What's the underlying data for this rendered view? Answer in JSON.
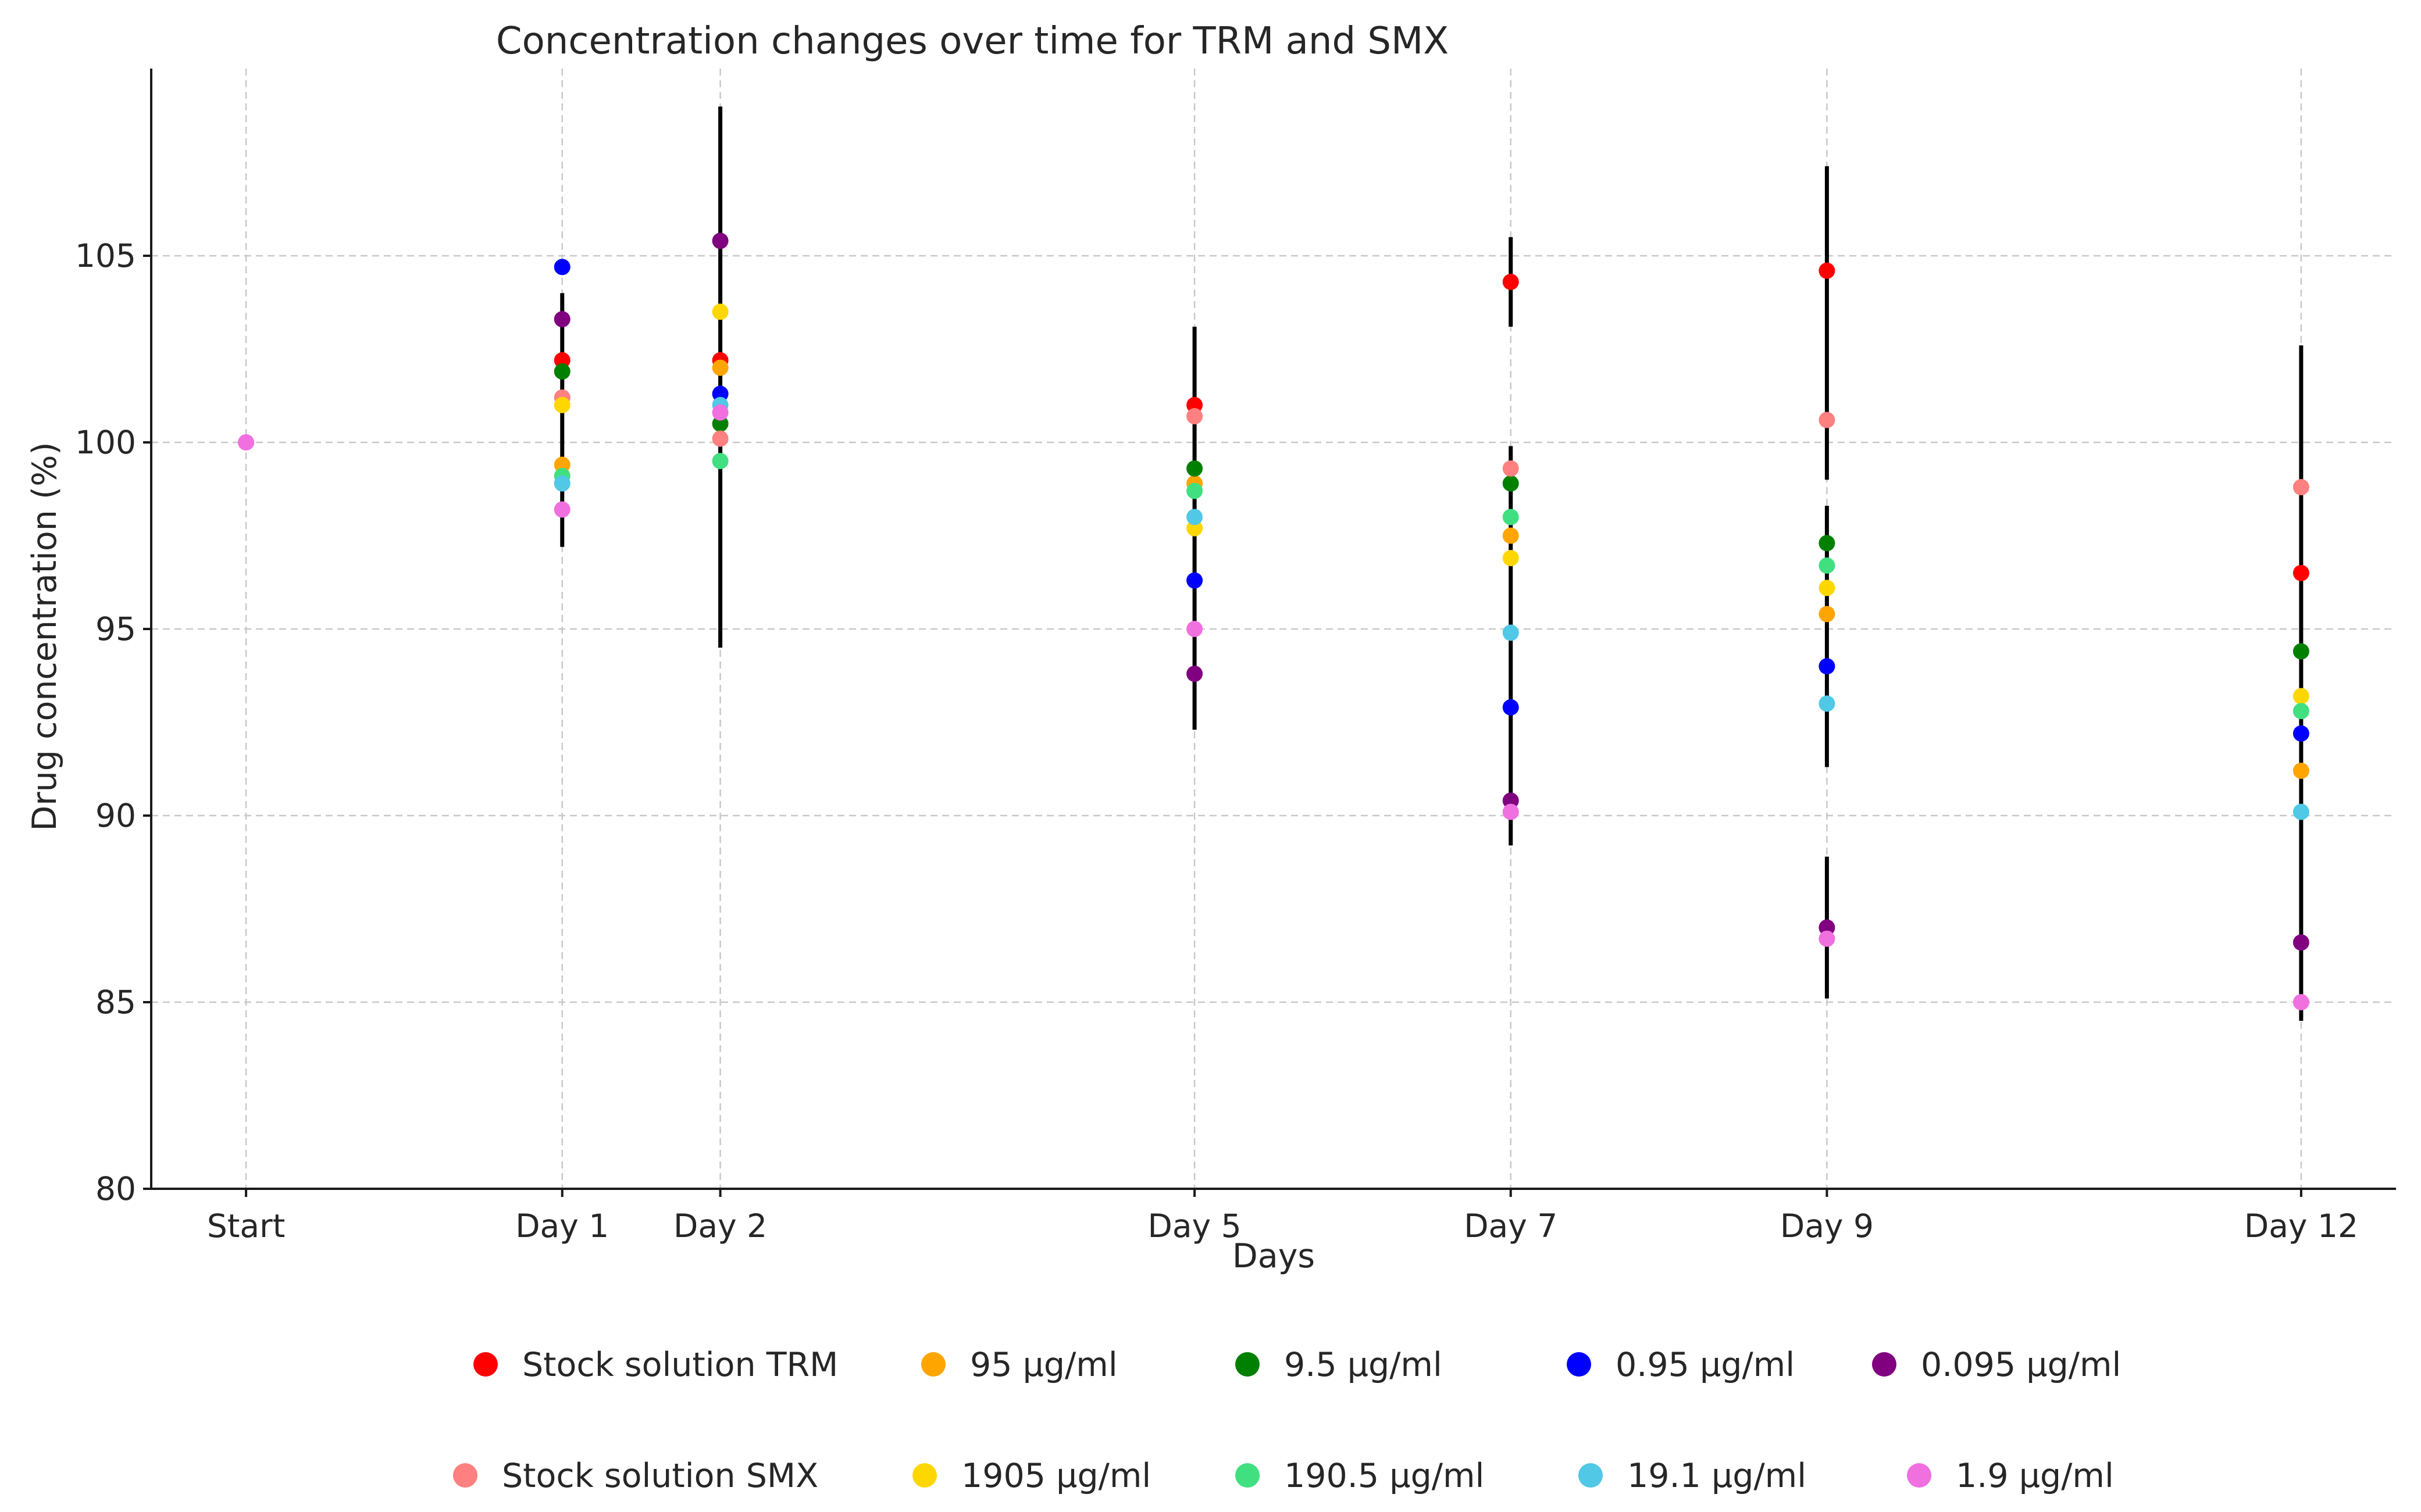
{
  "chart_data": {
    "type": "scatter",
    "title": "Concentration changes over time for TRM and SMX",
    "xlabel": "Days",
    "ylabel": "Drug concentration (%)",
    "categories": [
      "Start",
      "Day 1",
      "Day 2",
      "Day 5",
      "Day 7",
      "Day 9",
      "Day 12"
    ],
    "x": [
      -1,
      1,
      2,
      5,
      7,
      9,
      12
    ],
    "xlim": [
      -1.6,
      12.6
    ],
    "ylim": [
      80,
      110
    ],
    "yticks": [
      80,
      85,
      90,
      95,
      100,
      105
    ],
    "grid": true,
    "legend_position": "bottom",
    "error_bars": [
      {
        "x": 1,
        "low": 97.2,
        "high": 104.0
      },
      {
        "x": 2,
        "low": 94.5,
        "high": 109.0
      },
      {
        "x": 5,
        "low": 92.3,
        "high": 103.1
      },
      {
        "x": 7,
        "low": 89.2,
        "high": 99.9
      },
      {
        "x": 7,
        "low": 103.1,
        "high": 105.5
      },
      {
        "x": 9,
        "low": 91.3,
        "high": 98.3
      },
      {
        "x": 9,
        "low": 99.0,
        "high": 107.4
      },
      {
        "x": 9,
        "low": 85.1,
        "high": 88.9
      },
      {
        "x": 12,
        "low": 84.5,
        "high": 102.6
      }
    ],
    "series": [
      {
        "name": "Stock solution TRM",
        "color": "#ff0000",
        "values": [
          null,
          102.2,
          102.2,
          101.0,
          104.3,
          104.6,
          96.5
        ]
      },
      {
        "name": "95 µg/ml",
        "color": "#ffa500",
        "values": [
          null,
          99.4,
          102.0,
          98.9,
          97.5,
          95.4,
          91.2
        ]
      },
      {
        "name": "9.5 µg/ml",
        "color": "#008000",
        "values": [
          null,
          101.9,
          100.5,
          99.3,
          98.9,
          97.3,
          94.4
        ]
      },
      {
        "name": "0.95 µg/ml",
        "color": "#0000ff",
        "values": [
          null,
          104.7,
          101.3,
          96.3,
          92.9,
          94.0,
          92.2
        ]
      },
      {
        "name": "0.095 µg/ml",
        "color": "#800080",
        "values": [
          null,
          103.3,
          105.4,
          93.8,
          90.4,
          87.0,
          86.6
        ]
      },
      {
        "name": "Stock solution SMX",
        "color": "#ff8080",
        "values": [
          100.0,
          101.2,
          100.1,
          100.7,
          99.3,
          100.6,
          98.8
        ]
      },
      {
        "name": "1905 µg/ml",
        "color": "#ffd700",
        "values": [
          null,
          101.0,
          103.5,
          97.7,
          96.9,
          96.1,
          93.2
        ]
      },
      {
        "name": "190.5 µg/ml",
        "color": "#40e080",
        "values": [
          null,
          99.1,
          99.5,
          98.7,
          98.0,
          96.7,
          92.8
        ]
      },
      {
        "name": "19.1 µg/ml",
        "color": "#50c8e6",
        "values": [
          null,
          98.9,
          101.0,
          98.0,
          94.9,
          93.0,
          90.1
        ]
      },
      {
        "name": "1.9 µg/ml",
        "color": "#f070e0",
        "values": [
          100.0,
          98.2,
          100.8,
          95.0,
          90.1,
          86.7,
          85.0
        ]
      }
    ]
  }
}
